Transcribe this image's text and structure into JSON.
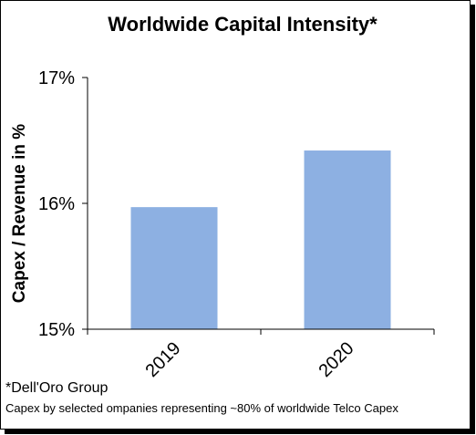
{
  "chart_data": {
    "type": "bar",
    "title": "Worldwide Capital Intensity*",
    "ylabel": "Capex / Revenue in %",
    "xlabel": "",
    "categories": [
      "2019",
      "2020"
    ],
    "values": [
      15.97,
      16.42
    ],
    "ylim": [
      15,
      17
    ],
    "yticks": [
      15,
      16,
      17
    ],
    "ytick_labels": [
      "15%",
      "16%",
      "17%"
    ],
    "grid": false,
    "bar_color": "#8DB0E2"
  },
  "footnote": {
    "source": "*Dell'Oro Group",
    "description": "Capex by selected ompanies representing ~80% of worldwide Telco Capex"
  }
}
